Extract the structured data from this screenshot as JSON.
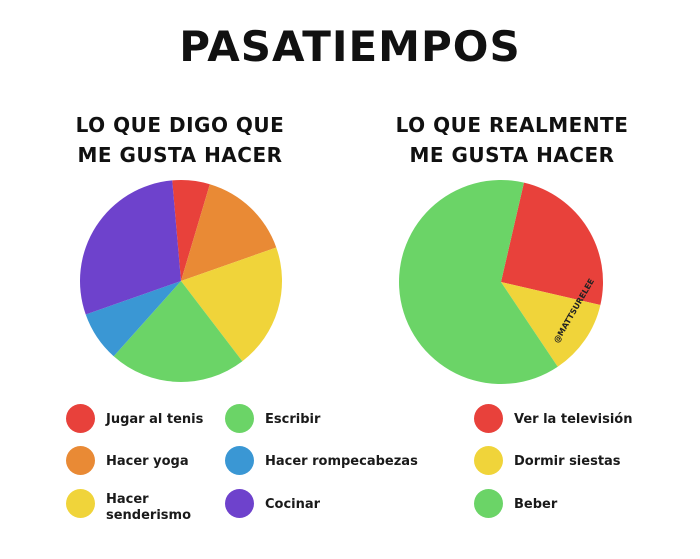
{
  "title": "PASATIEMPOS",
  "watermark": "@MATTSURELEE",
  "chart_data": [
    {
      "type": "pie",
      "title_lines": [
        "LO QUE DIGO QUE",
        "ME GUSTA HACER"
      ],
      "slices": [
        {
          "label": "Jugar al tenis",
          "value": 6,
          "color": "#E8413B"
        },
        {
          "label": "Hacer yoga",
          "value": 15,
          "color": "#E98A35"
        },
        {
          "label": "Hacer senderismo",
          "value": 20,
          "color": "#F0D43A"
        },
        {
          "label": "Escribir",
          "value": 22,
          "color": "#6BD467"
        },
        {
          "label": "Hacer rompecabezas",
          "value": 8,
          "color": "#3A97D4"
        },
        {
          "label": "Cocinar",
          "value": 29,
          "color": "#6E42CC"
        }
      ],
      "legend": [
        {
          "label": "Jugar al tenis",
          "label_lines": [
            "Jugar al tenis"
          ],
          "color": "#E8413B"
        },
        {
          "label": "Hacer yoga",
          "label_lines": [
            "Hacer yoga"
          ],
          "color": "#E98A35"
        },
        {
          "label": "Hacer senderismo",
          "label_lines": [
            "Hacer",
            "senderismo"
          ],
          "color": "#F0D43A"
        },
        {
          "label": "Escribir",
          "label_lines": [
            "Escribir"
          ],
          "color": "#6BD467"
        },
        {
          "label": "Hacer rompecabezas",
          "label_lines": [
            "Hacer rompecabezas"
          ],
          "color": "#3A97D4"
        },
        {
          "label": "Cocinar",
          "label_lines": [
            "Cocinar"
          ],
          "color": "#6E42CC"
        }
      ]
    },
    {
      "type": "pie",
      "title_lines": [
        "LO QUE REALMENTE",
        "ME GUSTA HACER"
      ],
      "slices": [
        {
          "label": "Ver la televisión",
          "value": 25,
          "color": "#E8413B"
        },
        {
          "label": "Dormir siestas",
          "value": 12,
          "color": "#F0D43A"
        },
        {
          "label": "Beber",
          "value": 63,
          "color": "#6BD467"
        }
      ],
      "legend": [
        {
          "label": "Ver la televisión",
          "label_lines": [
            "Ver la televisión"
          ],
          "color": "#E8413B"
        },
        {
          "label": "Dormir siestas",
          "label_lines": [
            "Dormir siestas"
          ],
          "color": "#F0D43A"
        },
        {
          "label": "Beber",
          "label_lines": [
            "Beber"
          ],
          "color": "#6BD467"
        }
      ]
    }
  ]
}
